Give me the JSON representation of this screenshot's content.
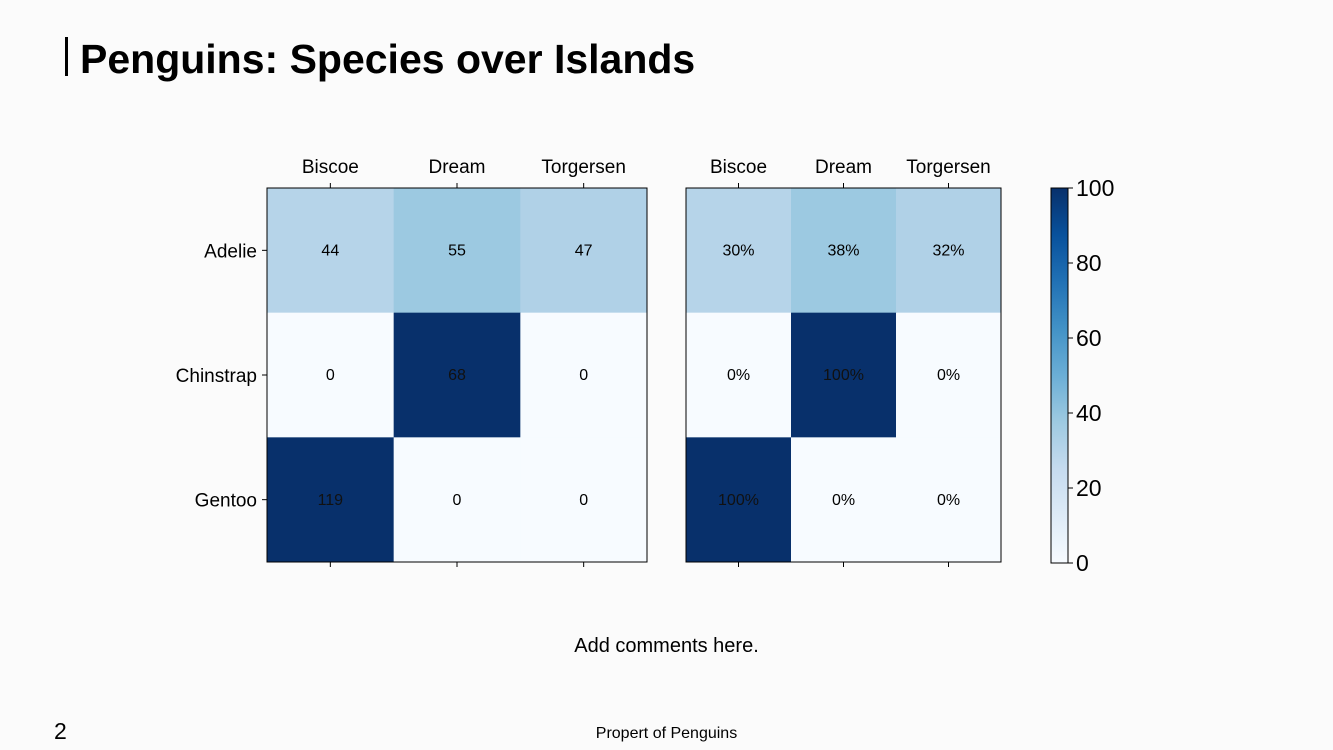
{
  "slide": {
    "title": "Penguins: Species over Islands",
    "comment": "Add comments here.",
    "page_number": "2",
    "footer": "Propert of Penguins"
  },
  "chart_data": [
    {
      "type": "heatmap",
      "name": "counts",
      "x_labels": [
        "Biscoe",
        "Dream",
        "Torgersen"
      ],
      "y_labels": [
        "Adelie",
        "Chinstrap",
        "Gentoo"
      ],
      "values": [
        [
          44,
          55,
          47
        ],
        [
          0,
          68,
          0
        ],
        [
          119,
          0,
          0
        ]
      ],
      "color_values": [
        [
          30,
          38,
          32
        ],
        [
          0,
          100,
          0
        ],
        [
          100,
          0,
          0
        ]
      ],
      "cell_labels": [
        [
          "44",
          "55",
          "47"
        ],
        [
          "0",
          "68",
          "0"
        ],
        [
          "119",
          "0",
          "0"
        ]
      ]
    },
    {
      "type": "heatmap",
      "name": "percent",
      "x_labels": [
        "Biscoe",
        "Dream",
        "Torgersen"
      ],
      "y_labels": [
        "Adelie",
        "Chinstrap",
        "Gentoo"
      ],
      "values": [
        [
          30,
          38,
          32
        ],
        [
          0,
          100,
          0
        ],
        [
          100,
          0,
          0
        ]
      ],
      "cell_labels": [
        [
          "30%",
          "38%",
          "32%"
        ],
        [
          "0%",
          "100%",
          "0%"
        ],
        [
          "100%",
          "0%",
          "0%"
        ]
      ]
    },
    {
      "type": "colorbar",
      "colormap": "Blues",
      "range": [
        0,
        100
      ],
      "ticks": [
        0,
        20,
        40,
        60,
        80,
        100
      ],
      "tick_labels": [
        "0",
        "20",
        "40",
        "60",
        "80",
        "100"
      ]
    }
  ]
}
